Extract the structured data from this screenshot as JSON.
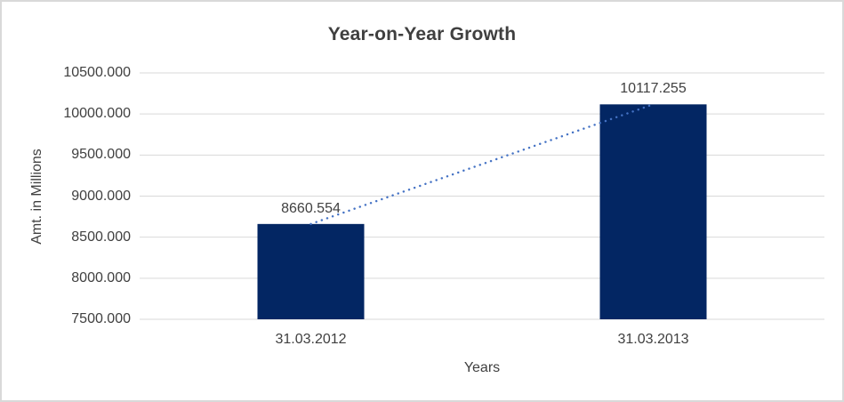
{
  "chart_data": {
    "type": "bar",
    "title": "Year-on-Year Growth",
    "xlabel": "Years",
    "ylabel": "Amt. in Millions",
    "categories": [
      "31.03.2012",
      "31.03.2013"
    ],
    "values": [
      8660.554,
      10117.255
    ],
    "data_labels": [
      "8660.554",
      "10117.255"
    ],
    "ylim": [
      7500,
      10500
    ],
    "ytick_step": 500,
    "ytick_labels": [
      "7500.000",
      "8000.000",
      "8500.000",
      "9000.000",
      "9500.000",
      "10000.000",
      "10500.000"
    ],
    "grid": true,
    "legend_position": "none",
    "trendline": {
      "style": "dotted",
      "from_value": 8660.554,
      "to_value": 10117.255
    }
  },
  "colors": {
    "bar": "#032663",
    "trendline": "#4472c4",
    "gridline": "#d9d9d9",
    "text": "#404040",
    "title": "#3f3f3f",
    "frame_border": "#d9d9d9",
    "background": "#ffffff"
  }
}
